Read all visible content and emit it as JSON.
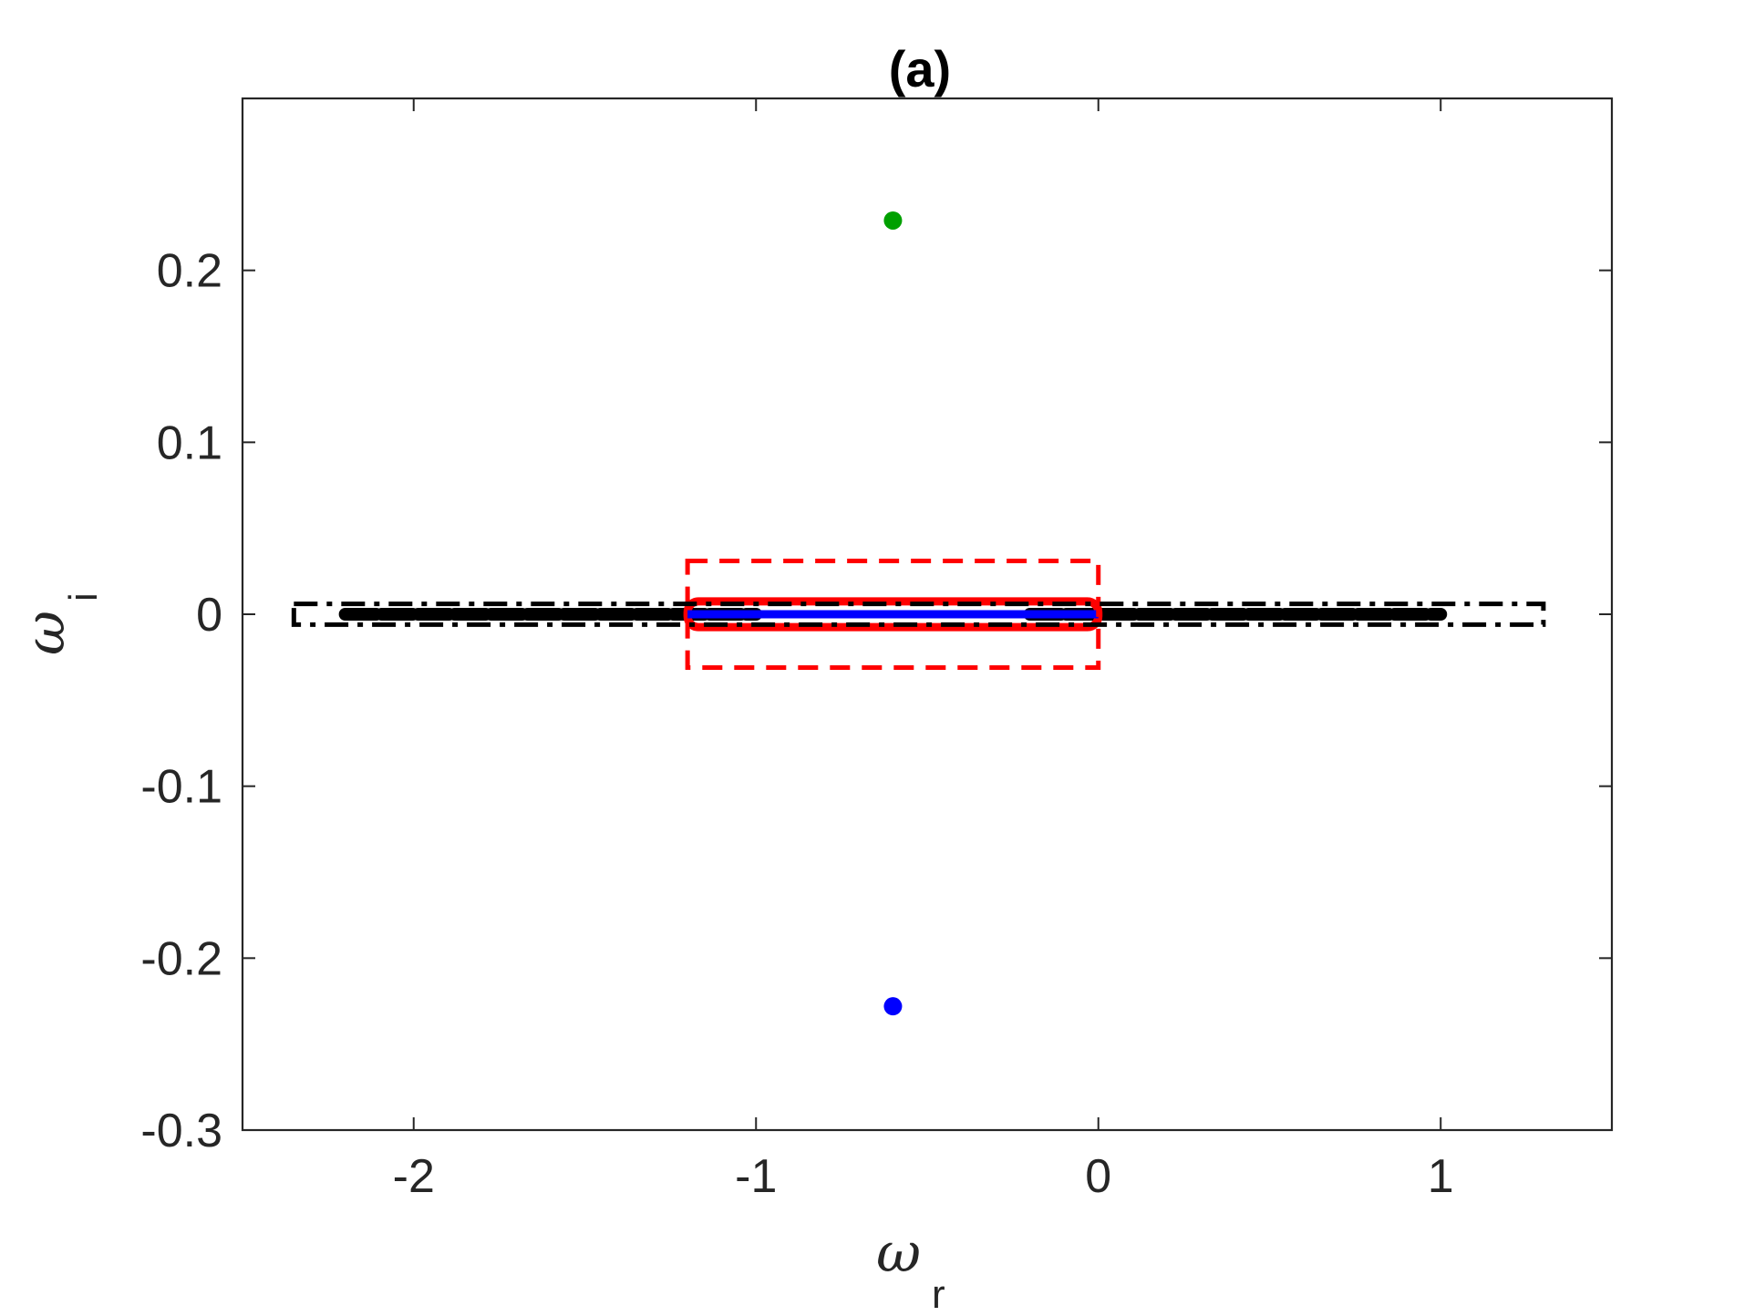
{
  "chart_data": {
    "type": "scatter",
    "title": "(a)",
    "xlabel": {
      "symbol": "ω",
      "subscript": "r"
    },
    "ylabel": {
      "symbol": "ω",
      "subscript": "i"
    },
    "xlim": [
      -2.5,
      1.5
    ],
    "ylim": [
      -0.3,
      0.3
    ],
    "xticks": [
      -2,
      -1,
      0,
      1
    ],
    "xtick_labels": [
      "-2",
      "-1",
      "0",
      "1"
    ],
    "yticks": [
      -0.3,
      -0.2,
      -0.1,
      0,
      0.1,
      0.2
    ],
    "ytick_labels": [
      "-0.3",
      "-0.2",
      "-0.1",
      "0",
      "0.1",
      "0.2"
    ],
    "grid": false,
    "series": [
      {
        "kind": "point",
        "color": "#00a000",
        "points": [
          [
            -0.6,
            0.229
          ]
        ]
      },
      {
        "kind": "point",
        "color": "#0000ff",
        "points": [
          [
            -0.6,
            -0.228
          ]
        ]
      },
      {
        "kind": "thick-band",
        "color": "#000000",
        "x_ranges": [
          [
            -2.2,
            -1.0
          ],
          [
            -0.2,
            1.0
          ]
        ],
        "y": 0
      },
      {
        "kind": "thick-band",
        "color": "#ff0000",
        "x_ranges": [
          [
            -1.2,
            0.0
          ]
        ],
        "y_range": [
          -0.0075,
          0.0075
        ]
      },
      {
        "kind": "line",
        "color": "#0000ff",
        "x_range": [
          -1.2,
          0.0
        ],
        "y": 0
      },
      {
        "kind": "dashed-rectangle",
        "color": "#ff0000",
        "x_range": [
          -1.2,
          0.0
        ],
        "y_range": [
          -0.031,
          0.031
        ]
      },
      {
        "kind": "dashdot-rectangle",
        "color": "#000000",
        "x_range": [
          -2.35,
          1.3
        ],
        "y_range": [
          -0.006,
          0.006
        ]
      }
    ]
  }
}
